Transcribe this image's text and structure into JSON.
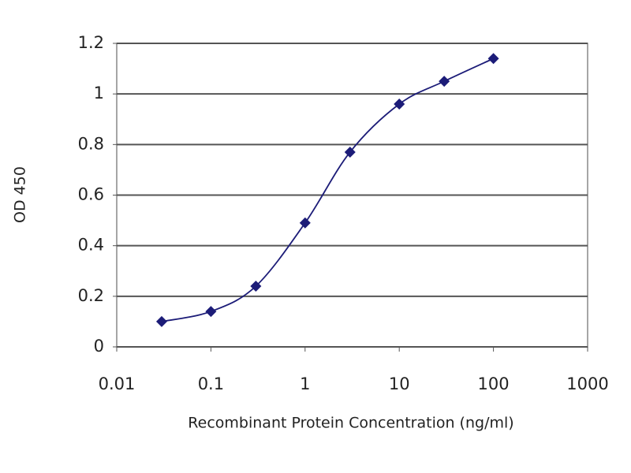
{
  "chart_data": {
    "type": "line",
    "x_label": "Recombinant Protein Concentration (ng/ml)",
    "y_label": "OD 450",
    "x": [
      0.03,
      0.1,
      0.3,
      1,
      3,
      10,
      30,
      100
    ],
    "values": [
      0.1,
      0.14,
      0.24,
      0.49,
      0.77,
      0.96,
      1.05,
      1.14
    ],
    "color": "#1c1c78",
    "xlim": [
      0.01,
      1000
    ],
    "xticks": [
      0.01,
      0.1,
      1,
      10,
      100,
      1000
    ],
    "x_log": true,
    "ylim": [
      0,
      1.2
    ],
    "yticks": [
      0,
      0.2,
      0.4,
      0.6,
      0.8,
      1,
      1.2
    ],
    "grid": true
  }
}
